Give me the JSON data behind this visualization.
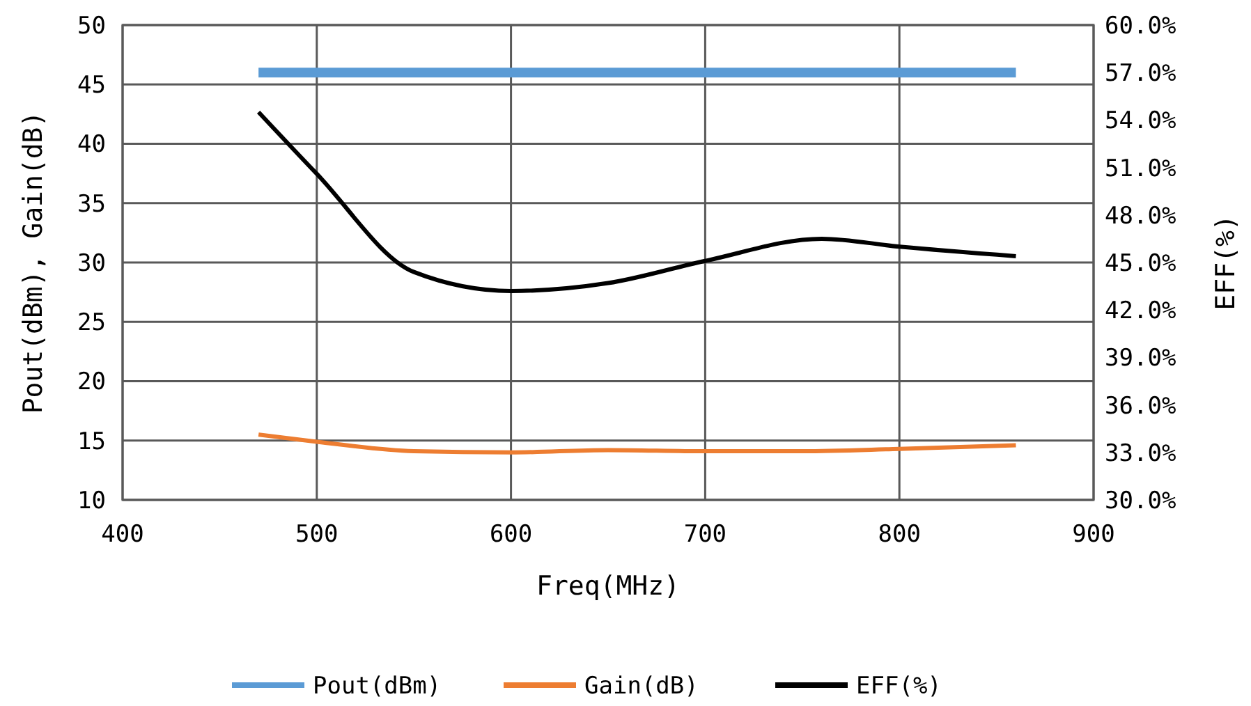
{
  "chart_data": {
    "type": "line",
    "xlabel": "Freq(MHz)",
    "ylabel": "Pout(dBm), Gain(dB)",
    "y2label": "EFF(%)",
    "xlim": [
      400,
      900
    ],
    "xticks": [
      400,
      500,
      600,
      700,
      800,
      900
    ],
    "ylim": [
      10,
      50
    ],
    "yticks": [
      10,
      15,
      20,
      25,
      30,
      35,
      40,
      45,
      50
    ],
    "y2lim": [
      30,
      60
    ],
    "y2ticks": [
      {
        "value": 30,
        "label": "30.0%"
      },
      {
        "value": 33,
        "label": "33.0%"
      },
      {
        "value": 36,
        "label": "36.0%"
      },
      {
        "value": 39,
        "label": "39.0%"
      },
      {
        "value": 42,
        "label": "42.0%"
      },
      {
        "value": 45,
        "label": "45.0%"
      },
      {
        "value": 48,
        "label": "48.0%"
      },
      {
        "value": 51,
        "label": "51.0%"
      },
      {
        "value": 54,
        "label": "54.0%"
      },
      {
        "value": 57,
        "label": "57.0%"
      },
      {
        "value": 60,
        "label": "60.0%"
      }
    ],
    "grid": true,
    "legend": "bottom",
    "marker": "none",
    "series": [
      {
        "name": "Pout(dBm)",
        "color": "#5b9bd5",
        "x": [
          470,
          500,
          550,
          600,
          650,
          700,
          750,
          800,
          860
        ],
        "values": [
          46,
          46,
          46,
          46,
          46,
          46,
          46,
          46,
          46
        ]
      },
      {
        "name": "Gain(dB)",
        "color": "#ed7d31",
        "x": [
          470,
          500,
          550,
          600,
          650,
          700,
          750,
          800,
          860
        ],
        "values": [
          15.5,
          14.9,
          14.1,
          14.0,
          14.2,
          14.1,
          14.1,
          14.3,
          14.6
        ]
      },
      {
        "name": "EFF(%)",
        "color": "#000000",
        "axis": "y2",
        "x": [
          470,
          500,
          550,
          600,
          650,
          700,
          760,
          800,
          860
        ],
        "values": [
          54.5,
          50.6,
          44.4,
          43.2,
          43.7,
          45.1,
          46.5,
          46.0,
          45.4
        ]
      }
    ]
  }
}
